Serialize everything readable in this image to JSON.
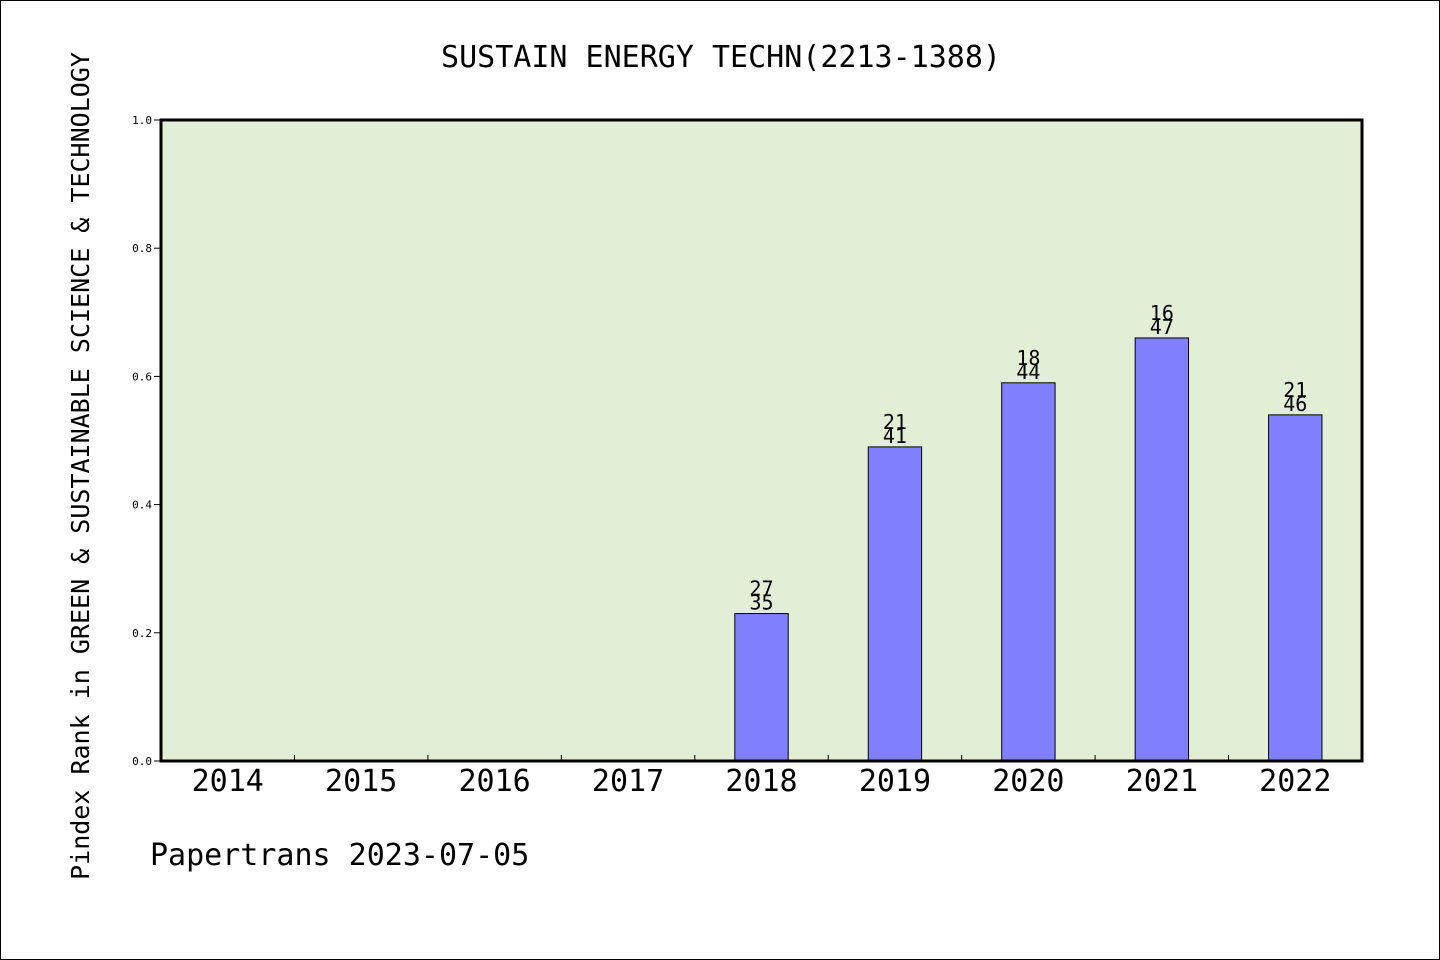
{
  "chart_data": {
    "type": "bar",
    "title": "SUSTAIN ENERGY TECHN(2213-1388)",
    "ylabel": "Pindex Rank in GREEN & SUSTAINABLE SCIENCE & TECHNOLOGY",
    "xlabel": "",
    "footer": "Papertrans 2023-07-05",
    "categories": [
      "2014",
      "2015",
      "2016",
      "2017",
      "2018",
      "2019",
      "2020",
      "2021",
      "2022"
    ],
    "values": [
      null,
      null,
      null,
      null,
      0.23,
      0.49,
      0.59,
      0.66,
      0.54
    ],
    "bar_labels": [
      null,
      null,
      null,
      null,
      {
        "rank": "27",
        "total": "35"
      },
      {
        "rank": "21",
        "total": "41"
      },
      {
        "rank": "18",
        "total": "44"
      },
      {
        "rank": "16",
        "total": "47"
      },
      {
        "rank": "21",
        "total": "46"
      }
    ],
    "ylim": [
      0,
      1.0
    ],
    "yticks": [
      "0.0",
      "0.2",
      "0.4",
      "0.6",
      "0.8",
      "1.0"
    ],
    "grid": false,
    "colors": {
      "plot_background": "#e2efd6",
      "bar_fill": "#8080ff",
      "bar_stroke": "#000000",
      "axis": "#000000"
    }
  }
}
